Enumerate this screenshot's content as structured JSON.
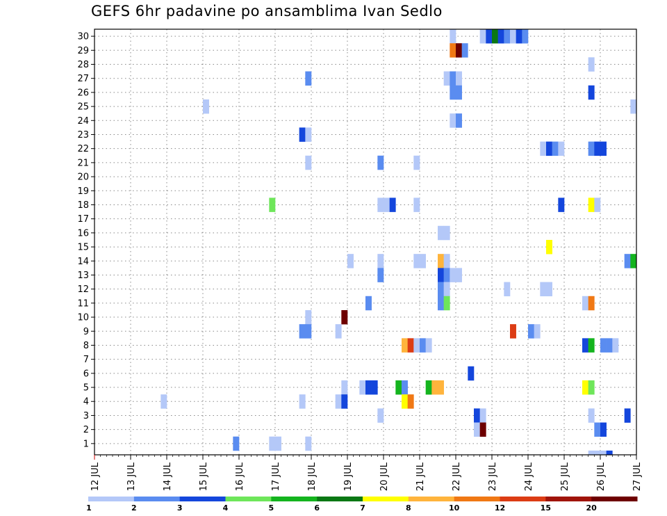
{
  "chart_data": {
    "type": "heatmap",
    "title": "GEFS 6hr padavine po ansamblima Ivan Sedlo",
    "xlabel": "",
    "ylabel": "",
    "x_unit": "6-hour step",
    "xlim": [
      0,
      90
    ],
    "ylim": [
      0,
      30
    ],
    "yticks": [
      1,
      2,
      3,
      4,
      5,
      6,
      7,
      8,
      9,
      10,
      11,
      12,
      13,
      14,
      15,
      16,
      17,
      18,
      19,
      20,
      21,
      22,
      23,
      24,
      25,
      26,
      27,
      28,
      29,
      30
    ],
    "xticks": [
      {
        "step": 0,
        "label": "12 JUL"
      },
      {
        "step": 6,
        "label": "13 JUL"
      },
      {
        "step": 12,
        "label": "14 JUL"
      },
      {
        "step": 18,
        "label": "15 JUL"
      },
      {
        "step": 24,
        "label": "16 JUL"
      },
      {
        "step": 30,
        "label": "17 JUL"
      },
      {
        "step": 36,
        "label": "18 JUL"
      },
      {
        "step": 42,
        "label": "19 JUL"
      },
      {
        "step": 48,
        "label": "20 JUL"
      },
      {
        "step": 54,
        "label": "21 JUL"
      },
      {
        "step": 60,
        "label": "22 JUL"
      },
      {
        "step": 66,
        "label": "23 JUL"
      },
      {
        "step": 72,
        "label": "24 JUL"
      },
      {
        "step": 78,
        "label": "25 JUL"
      },
      {
        "step": 84,
        "label": "26 JUL"
      },
      {
        "step": 90,
        "label": "27 JUL"
      }
    ],
    "grid": true,
    "colorbar": {
      "labels": [
        "1",
        "2",
        "3",
        "4",
        "5",
        "6",
        "7",
        "8",
        "10",
        "12",
        "15",
        "20"
      ],
      "colors": [
        "#b4c8f8",
        "#5a8cf0",
        "#1446dc",
        "#6ee65a",
        "#14b41e",
        "#0a7814",
        "#ffff00",
        "#ffb43c",
        "#f07814",
        "#dc3c14",
        "#a0140a",
        "#6e0000"
      ]
    },
    "cells": [
      {
        "m": 30,
        "x": 59,
        "c": 0
      },
      {
        "m": 30,
        "x": 64,
        "c": 0
      },
      {
        "m": 30,
        "x": 65,
        "c": 2
      },
      {
        "m": 30,
        "x": 66,
        "c": 5
      },
      {
        "m": 30,
        "x": 67,
        "c": 2
      },
      {
        "m": 30,
        "x": 68,
        "c": 1
      },
      {
        "m": 30,
        "x": 69,
        "c": 0
      },
      {
        "m": 30,
        "x": 70,
        "c": 2
      },
      {
        "m": 30,
        "x": 71,
        "c": 1
      },
      {
        "m": 29,
        "x": 59,
        "c": 8
      },
      {
        "m": 29,
        "x": 60,
        "c": 11
      },
      {
        "m": 29,
        "x": 61,
        "c": 1
      },
      {
        "m": 28,
        "x": 82,
        "c": 0
      },
      {
        "m": 27,
        "x": 35,
        "c": 1
      },
      {
        "m": 27,
        "x": 58,
        "c": 0
      },
      {
        "m": 27,
        "x": 59,
        "c": 1
      },
      {
        "m": 27,
        "x": 60,
        "c": 0
      },
      {
        "m": 26,
        "x": 59,
        "c": 1
      },
      {
        "m": 26,
        "x": 60,
        "c": 1
      },
      {
        "m": 26,
        "x": 82,
        "c": 2
      },
      {
        "m": 25,
        "x": 18,
        "c": 0
      },
      {
        "m": 25,
        "x": 89,
        "c": 0
      },
      {
        "m": 24,
        "x": 59,
        "c": 0
      },
      {
        "m": 24,
        "x": 60,
        "c": 1
      },
      {
        "m": 23,
        "x": 34,
        "c": 2
      },
      {
        "m": 23,
        "x": 35,
        "c": 0
      },
      {
        "m": 22,
        "x": 74,
        "c": 0
      },
      {
        "m": 22,
        "x": 75,
        "c": 2
      },
      {
        "m": 22,
        "x": 76,
        "c": 1
      },
      {
        "m": 22,
        "x": 77,
        "c": 0
      },
      {
        "m": 22,
        "x": 82,
        "c": 1
      },
      {
        "m": 22,
        "x": 83,
        "c": 2
      },
      {
        "m": 22,
        "x": 84,
        "c": 2
      },
      {
        "m": 21,
        "x": 35,
        "c": 0
      },
      {
        "m": 21,
        "x": 47,
        "c": 1
      },
      {
        "m": 21,
        "x": 53,
        "c": 0
      },
      {
        "m": 18,
        "x": 29,
        "c": 3
      },
      {
        "m": 18,
        "x": 47,
        "c": 0
      },
      {
        "m": 18,
        "x": 48,
        "c": 0
      },
      {
        "m": 18,
        "x": 49,
        "c": 2
      },
      {
        "m": 18,
        "x": 53,
        "c": 0
      },
      {
        "m": 18,
        "x": 77,
        "c": 2
      },
      {
        "m": 18,
        "x": 82,
        "c": 6
      },
      {
        "m": 18,
        "x": 83,
        "c": 0
      },
      {
        "m": 16,
        "x": 57,
        "c": 0
      },
      {
        "m": 16,
        "x": 58,
        "c": 0
      },
      {
        "m": 15,
        "x": 75,
        "c": 6
      },
      {
        "m": 14,
        "x": 42,
        "c": 0
      },
      {
        "m": 14,
        "x": 47,
        "c": 0
      },
      {
        "m": 14,
        "x": 53,
        "c": 0
      },
      {
        "m": 14,
        "x": 54,
        "c": 0
      },
      {
        "m": 14,
        "x": 57,
        "c": 7
      },
      {
        "m": 14,
        "x": 58,
        "c": 0
      },
      {
        "m": 14,
        "x": 88,
        "c": 1
      },
      {
        "m": 14,
        "x": 89,
        "c": 4
      },
      {
        "m": 13,
        "x": 47,
        "c": 1
      },
      {
        "m": 13,
        "x": 57,
        "c": 2
      },
      {
        "m": 13,
        "x": 58,
        "c": 1
      },
      {
        "m": 13,
        "x": 59,
        "c": 0
      },
      {
        "m": 13,
        "x": 60,
        "c": 0
      },
      {
        "m": 12,
        "x": 57,
        "c": 1
      },
      {
        "m": 12,
        "x": 58,
        "c": 0
      },
      {
        "m": 12,
        "x": 68,
        "c": 0
      },
      {
        "m": 12,
        "x": 74,
        "c": 0
      },
      {
        "m": 12,
        "x": 75,
        "c": 0
      },
      {
        "m": 11,
        "x": 45,
        "c": 1
      },
      {
        "m": 11,
        "x": 57,
        "c": 1
      },
      {
        "m": 11,
        "x": 58,
        "c": 3
      },
      {
        "m": 11,
        "x": 81,
        "c": 0
      },
      {
        "m": 11,
        "x": 82,
        "c": 8
      },
      {
        "m": 10,
        "x": 35,
        "c": 0
      },
      {
        "m": 10,
        "x": 41,
        "c": 11
      },
      {
        "m": 9,
        "x": 34,
        "c": 1
      },
      {
        "m": 9,
        "x": 35,
        "c": 1
      },
      {
        "m": 9,
        "x": 40,
        "c": 0
      },
      {
        "m": 9,
        "x": 69,
        "c": 9
      },
      {
        "m": 9,
        "x": 72,
        "c": 1
      },
      {
        "m": 9,
        "x": 73,
        "c": 0
      },
      {
        "m": 8,
        "x": 51,
        "c": 7
      },
      {
        "m": 8,
        "x": 52,
        "c": 9
      },
      {
        "m": 8,
        "x": 53,
        "c": 0
      },
      {
        "m": 8,
        "x": 54,
        "c": 1
      },
      {
        "m": 8,
        "x": 55,
        "c": 0
      },
      {
        "m": 8,
        "x": 81,
        "c": 2
      },
      {
        "m": 8,
        "x": 82,
        "c": 4
      },
      {
        "m": 8,
        "x": 84,
        "c": 1
      },
      {
        "m": 8,
        "x": 85,
        "c": 1
      },
      {
        "m": 8,
        "x": 86,
        "c": 0
      },
      {
        "m": 6,
        "x": 62,
        "c": 2
      },
      {
        "m": 5,
        "x": 41,
        "c": 0
      },
      {
        "m": 5,
        "x": 44,
        "c": 0
      },
      {
        "m": 5,
        "x": 45,
        "c": 2
      },
      {
        "m": 5,
        "x": 46,
        "c": 2
      },
      {
        "m": 5,
        "x": 50,
        "c": 4
      },
      {
        "m": 5,
        "x": 51,
        "c": 1
      },
      {
        "m": 5,
        "x": 55,
        "c": 4
      },
      {
        "m": 5,
        "x": 56,
        "c": 7
      },
      {
        "m": 5,
        "x": 57,
        "c": 7
      },
      {
        "m": 5,
        "x": 81,
        "c": 6
      },
      {
        "m": 5,
        "x": 82,
        "c": 3
      },
      {
        "m": 4,
        "x": 11,
        "c": 0
      },
      {
        "m": 4,
        "x": 34,
        "c": 0
      },
      {
        "m": 4,
        "x": 40,
        "c": 0
      },
      {
        "m": 4,
        "x": 41,
        "c": 2
      },
      {
        "m": 4,
        "x": 51,
        "c": 6
      },
      {
        "m": 4,
        "x": 52,
        "c": 8
      },
      {
        "m": 3,
        "x": 47,
        "c": 0
      },
      {
        "m": 3,
        "x": 63,
        "c": 2
      },
      {
        "m": 3,
        "x": 64,
        "c": 0
      },
      {
        "m": 3,
        "x": 82,
        "c": 0
      },
      {
        "m": 3,
        "x": 88,
        "c": 2
      },
      {
        "m": 2,
        "x": 63,
        "c": 0
      },
      {
        "m": 2,
        "x": 64,
        "c": 11
      },
      {
        "m": 2,
        "x": 83,
        "c": 1
      },
      {
        "m": 2,
        "x": 84,
        "c": 2
      },
      {
        "m": 1,
        "x": 23,
        "c": 1
      },
      {
        "m": 1,
        "x": 29,
        "c": 0
      },
      {
        "m": 1,
        "x": 30,
        "c": 0
      },
      {
        "m": 1,
        "x": 35,
        "c": 0
      },
      {
        "m": 0,
        "x": 82,
        "c": 0
      },
      {
        "m": 0,
        "x": 83,
        "c": 0
      },
      {
        "m": 0,
        "x": 84,
        "c": 0
      },
      {
        "m": 0,
        "x": 85,
        "c": 2
      }
    ]
  }
}
